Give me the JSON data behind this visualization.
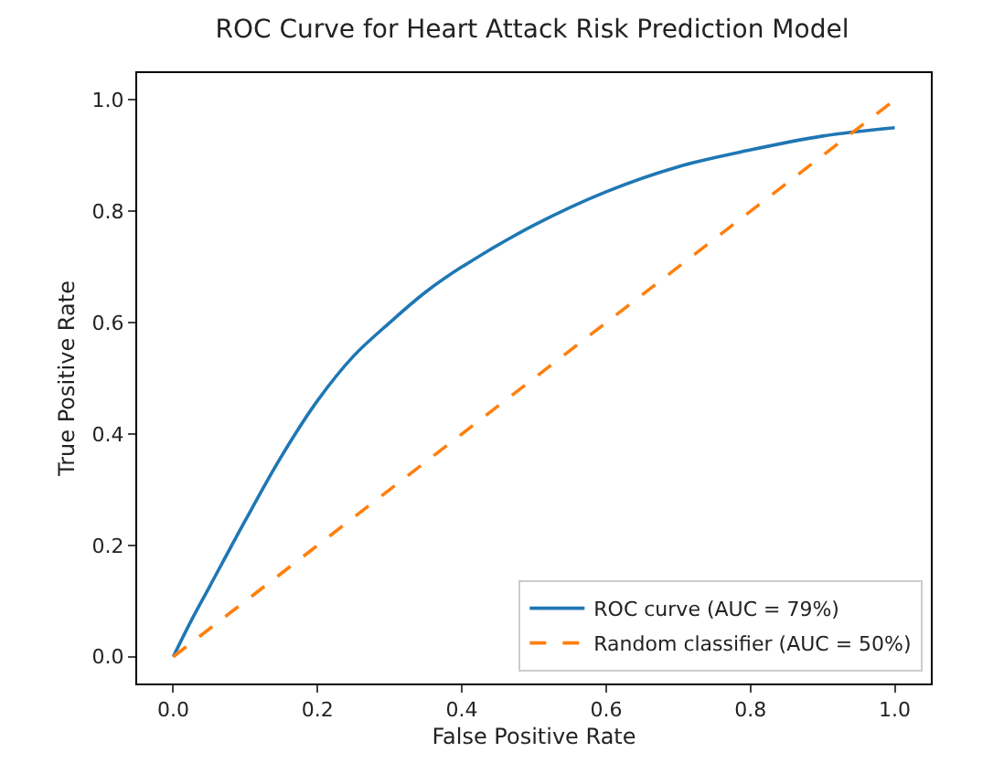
{
  "chart_data": {
    "type": "line",
    "title": "ROC Curve for Heart Attack Risk Prediction Model",
    "xlabel": "False Positive Rate",
    "ylabel": "True Positive Rate",
    "xlim": [
      -0.05,
      1.05
    ],
    "ylim": [
      -0.048,
      1.048
    ],
    "xticks": [
      {
        "value": 0,
        "label": "0.0"
      },
      0.2,
      0.4,
      0.6,
      0.8,
      {
        "value": 1,
        "label": "1.0"
      }
    ],
    "yticks": [
      {
        "value": 0,
        "label": "0.0"
      },
      0.2,
      0.4,
      0.6,
      0.8,
      {
        "value": 1,
        "label": "1.0"
      }
    ],
    "legend": "bottom right",
    "series": [
      {
        "name": "ROC curve (AUC = 79%)",
        "color": "#1f77b4",
        "line_style": "solid",
        "x": [
          0,
          0.025,
          0.05,
          0.1,
          0.15,
          0.2,
          0.25,
          0.3,
          0.35,
          0.4,
          0.5,
          0.6,
          0.7,
          0.8,
          0.9,
          1.0
        ],
        "values": [
          0,
          0.065,
          0.125,
          0.245,
          0.36,
          0.46,
          0.54,
          0.6,
          0.655,
          0.7,
          0.775,
          0.835,
          0.88,
          0.91,
          0.935,
          0.95
        ]
      },
      {
        "name": "Random classifier (AUC = 50%)",
        "color": "#ff7f0e",
        "line_style": "dashed",
        "x": [
          0,
          1
        ],
        "values": [
          0,
          1
        ]
      }
    ]
  }
}
